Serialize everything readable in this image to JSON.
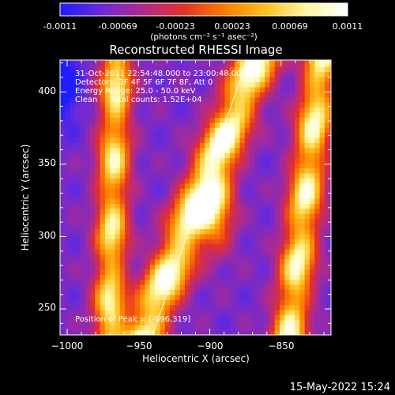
{
  "colorbar": {
    "ticks": [
      "-0.0011",
      "-0.00069",
      "-0.00023",
      "0.00023",
      "0.00069",
      "0.0011"
    ],
    "tick_values": [
      -0.0011,
      -0.00069,
      -0.00023,
      0.00023,
      0.00069,
      0.0011
    ],
    "unit_label": "(photons cm⁻² s⁻¹ asec⁻²)",
    "range": [
      -0.0011,
      0.0011
    ],
    "colormap": [
      "#1e1eff",
      "#6a2ad8",
      "#b02a8c",
      "#e2302a",
      "#ff7a00",
      "#ffc020",
      "#fff8a0",
      "#ffffff"
    ]
  },
  "chart": {
    "title": "Reconstructed RHESSI Image",
    "annotations": [
      "31-Oct-2011 22:54:48.000 to 23:00:48.000",
      "Detectors: 3F 4F 5F 6F 7F 8F, Att 0",
      "Energy Range: 25.0 - 50.0 keV",
      "Clean     Total counts: 1.52E+04"
    ],
    "peak_label": "Position of Peak = [-896,319]",
    "timestamp": "15-May-2022 15:24"
  },
  "chart_data": {
    "type": "heatmap",
    "title": "Reconstructed RHESSI Image",
    "xlabel": "Heliocentric X (arcsec)",
    "ylabel": "Heliocentric Y (arcsec)",
    "xlim": [
      -1005,
      -815
    ],
    "ylim": [
      232,
      422
    ],
    "x_ticks": [
      -1000,
      -950,
      -900,
      -850
    ],
    "x_tick_labels": [
      "−1000",
      "−950",
      "−900",
      "−850"
    ],
    "y_ticks": [
      250,
      300,
      350,
      400
    ],
    "y_tick_labels": [
      "250",
      "300",
      "350",
      "400"
    ],
    "peak": {
      "x": -896,
      "y": 319
    },
    "limb_line": [
      {
        "x": -940,
        "y": 232
      },
      {
        "x": -874,
        "y": 422
      }
    ],
    "bands": [
      {
        "x0": -968,
        "slope": 0.03,
        "width": 11,
        "amp": 0.72
      },
      {
        "x0": -907,
        "slope": 0.42,
        "width": 15,
        "amp": 0.88
      },
      {
        "x0": -833,
        "slope": 0.12,
        "width": 12,
        "amp": 0.78
      }
    ],
    "peak_blob": {
      "x": -896,
      "y": 319,
      "sx": 13,
      "sy": 28,
      "amp": 0.45
    },
    "background_level": 0.18
  }
}
